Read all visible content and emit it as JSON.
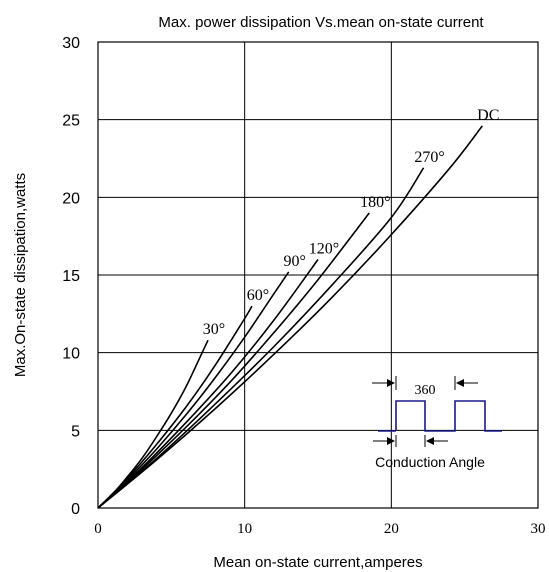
{
  "chart_data": {
    "type": "line",
    "title": "Max. power dissipation Vs.mean on-state current",
    "xlabel": "Mean on-state current,amperes",
    "ylabel": "Max.On-state dissipation,watts",
    "xlim": [
      0,
      30
    ],
    "ylim": [
      0,
      30
    ],
    "x_ticks": [
      "0",
      "10",
      "20",
      "30"
    ],
    "y_ticks": [
      "0",
      "5",
      "10",
      "15",
      "20",
      "25",
      "30"
    ],
    "grid": true,
    "series": [
      {
        "name": "30°",
        "x": [
          0,
          1,
          2,
          3,
          4,
          5,
          6,
          7,
          7.5
        ],
        "y": [
          0,
          0.9,
          2.0,
          3.2,
          4.6,
          6.1,
          7.8,
          9.8,
          10.8
        ]
      },
      {
        "name": "60°",
        "x": [
          0,
          2,
          4,
          6,
          8,
          10,
          10.5
        ],
        "y": [
          0,
          1.9,
          4.1,
          6.5,
          9.2,
          12.2,
          13.0
        ]
      },
      {
        "name": "90°",
        "x": [
          0,
          2,
          4,
          6,
          8,
          10,
          12,
          13
        ],
        "y": [
          0,
          1.8,
          3.8,
          6.0,
          8.4,
          11.0,
          13.8,
          15.2
        ]
      },
      {
        "name": "120°",
        "x": [
          0,
          3,
          6,
          9,
          12,
          15
        ],
        "y": [
          0,
          2.6,
          5.5,
          8.6,
          12.1,
          16.0
        ]
      },
      {
        "name": "180°",
        "x": [
          0,
          3,
          6,
          9,
          12,
          15,
          18.5
        ],
        "y": [
          0,
          2.5,
          5.2,
          8.1,
          11.3,
          14.7,
          19.0
        ]
      },
      {
        "name": "270°",
        "x": [
          0,
          4,
          8,
          12,
          16,
          20,
          22.2
        ],
        "y": [
          0,
          3.2,
          6.7,
          10.4,
          14.4,
          18.7,
          21.9
        ]
      },
      {
        "name": "DC",
        "x": [
          0,
          4,
          8,
          12,
          16,
          20,
          24,
          26.2
        ],
        "y": [
          0,
          3.1,
          6.4,
          9.9,
          13.6,
          17.6,
          21.9,
          24.6
        ]
      }
    ]
  },
  "inset": {
    "period_label": "360",
    "conduction_label": "Conduction Angle"
  }
}
